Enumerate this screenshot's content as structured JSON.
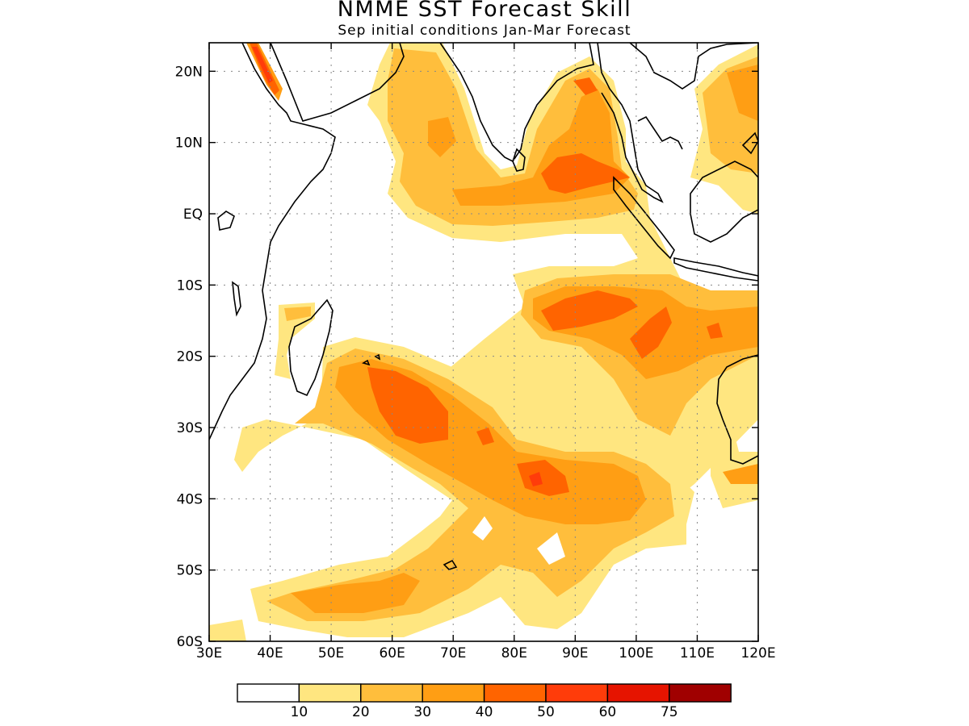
{
  "header": {
    "title": "NMME SST Forecast Skill",
    "subtitle": "Sep initial conditions  Jan-Mar Forecast"
  },
  "map": {
    "lon_range": [
      30,
      120
    ],
    "lat_range": [
      -60,
      24
    ],
    "lon_ticks": [
      {
        "value": 30,
        "label": "30E"
      },
      {
        "value": 40,
        "label": "40E"
      },
      {
        "value": 50,
        "label": "50E"
      },
      {
        "value": 60,
        "label": "60E"
      },
      {
        "value": 70,
        "label": "70E"
      },
      {
        "value": 80,
        "label": "80E"
      },
      {
        "value": 90,
        "label": "90E"
      },
      {
        "value": 100,
        "label": "100E"
      },
      {
        "value": 110,
        "label": "110E"
      },
      {
        "value": 120,
        "label": "120E"
      }
    ],
    "lat_ticks": [
      {
        "value": 20,
        "label": "20N"
      },
      {
        "value": 10,
        "label": "10N"
      },
      {
        "value": 0,
        "label": "EQ"
      },
      {
        "value": -10,
        "label": "10S"
      },
      {
        "value": -20,
        "label": "20S"
      },
      {
        "value": -30,
        "label": "30S"
      },
      {
        "value": -40,
        "label": "40S"
      },
      {
        "value": -50,
        "label": "50S"
      },
      {
        "value": -60,
        "label": "60S"
      }
    ],
    "grid": "dotted",
    "colors": {
      "c10": "#ffe680",
      "c20": "#ffbe3c",
      "c30": "#ff9e14",
      "c40": "#ff6400",
      "c50": "#ff3c0a",
      "c60": "#e61400",
      "c75": "#a00000",
      "land_outline": "#000000"
    }
  },
  "colorbar": {
    "labels": [
      "10",
      "20",
      "30",
      "40",
      "50",
      "60",
      "75"
    ],
    "colors": [
      "#ffffff",
      "#ffe680",
      "#ffbe3c",
      "#ff9e14",
      "#ff6400",
      "#ff3c0a",
      "#e61400",
      "#a00000"
    ]
  }
}
